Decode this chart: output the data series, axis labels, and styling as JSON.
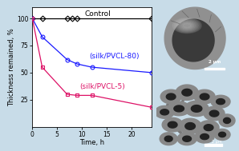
{
  "control_x": [
    0,
    2,
    7,
    8,
    9,
    24
  ],
  "control_y": [
    100,
    100,
    100,
    100,
    100,
    100
  ],
  "silk80_x": [
    0,
    2,
    7,
    9,
    12,
    24
  ],
  "silk80_y": [
    100,
    83,
    62,
    58,
    55,
    50
  ],
  "silk5_x": [
    0,
    2,
    7,
    9,
    12,
    24
  ],
  "silk5_y": [
    100,
    55,
    30,
    29,
    29,
    18
  ],
  "control_color": "#000000",
  "silk80_color": "#1a1aff",
  "silk5_color": "#dd1166",
  "xlabel": "Time, h",
  "ylabel": "Thickness remained, %",
  "xlim": [
    0,
    24
  ],
  "ylim": [
    0,
    110
  ],
  "yticks": [
    25,
    50,
    75,
    100
  ],
  "xticks": [
    0,
    5,
    10,
    15,
    20
  ],
  "control_label": "Control",
  "silk80_label": "(silk/PVCL-80)",
  "silk5_label": "(silk/PVCL-5)",
  "bg_color": "#c8dce8",
  "plot_bg_color": "#ffffff",
  "label_fontsize": 6.0,
  "tick_fontsize": 5.5,
  "annot_fontsize": 6.5
}
